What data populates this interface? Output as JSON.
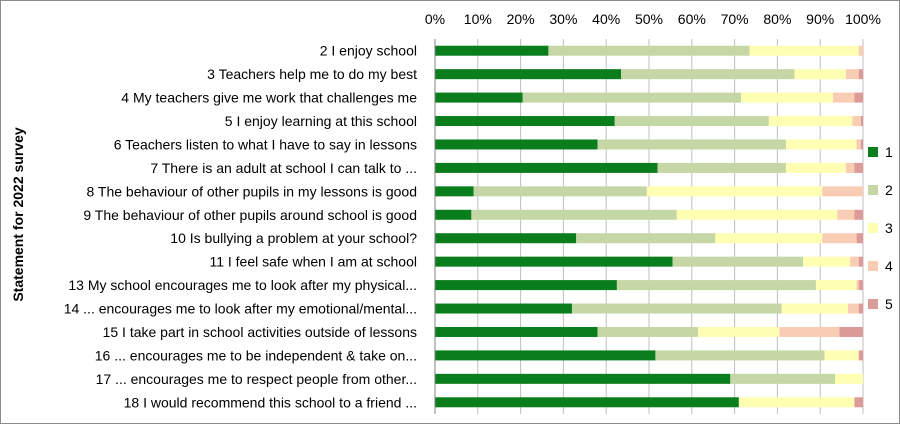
{
  "chart_data": {
    "type": "bar",
    "orientation": "horizontal",
    "stacked": true,
    "percent": true,
    "ylabel": "Statement for 2022 survey",
    "xlim": [
      0,
      100
    ],
    "x_ticks": [
      "0%",
      "10%",
      "20%",
      "30%",
      "40%",
      "50%",
      "60%",
      "70%",
      "80%",
      "90%",
      "100%"
    ],
    "grid": true,
    "legend_position": "right",
    "categories": [
      "2  I enjoy school",
      "3  Teachers help me to do my best",
      "4  My teachers give me work that challenges me",
      "5  I enjoy learning at this school",
      "6  Teachers listen to what I have to say in lessons",
      "7  There is an adult at school I can talk to ...",
      "8  The behaviour of other pupils in my lessons is good",
      "9  The behaviour of other pupils around school is good",
      "10  Is bullying a problem at your school?",
      "11  I feel safe when I am at school",
      "13  My school encourages me to look after my physical...",
      "14  ... encourages me to look after my emotional/mental...",
      "15  I take part in school activities outside of lessons",
      "16  ... encourages me to be independent & take on...",
      "17  ... encourages me to respect people from other...",
      "18  I would recommend this school to a friend ..."
    ],
    "series": [
      {
        "name": "1",
        "color": "#0a7d1c",
        "values": [
          26.5,
          43.5,
          20.5,
          42,
          38,
          52,
          9,
          8.5,
          33,
          55.5,
          42.5,
          32,
          38,
          51.5,
          69,
          71
        ]
      },
      {
        "name": "2",
        "color": "#c4d7a5",
        "values": [
          47,
          40.5,
          51,
          36,
          44,
          30,
          40.5,
          48,
          32.5,
          30.5,
          46.5,
          49,
          23.5,
          39.5,
          24.5,
          0
        ]
      },
      {
        "name": "3",
        "color": "#ffffb3",
        "values": [
          25.5,
          12,
          21.5,
          19.5,
          16.5,
          14,
          41,
          37.5,
          25,
          11,
          9.5,
          15.5,
          19,
          8,
          6.5,
          27
        ]
      },
      {
        "name": "4",
        "color": "#f9cdb3",
        "values": [
          1,
          3,
          5,
          2,
          1,
          2,
          9.5,
          4,
          8,
          2,
          0.5,
          2.5,
          14,
          0,
          0,
          0
        ]
      },
      {
        "name": "5",
        "color": "#dc9a98",
        "values": [
          0,
          1,
          2,
          0.5,
          0.5,
          2,
          0,
          2,
          1.5,
          1,
          1,
          1,
          5.5,
          1,
          0,
          2
        ]
      }
    ]
  }
}
